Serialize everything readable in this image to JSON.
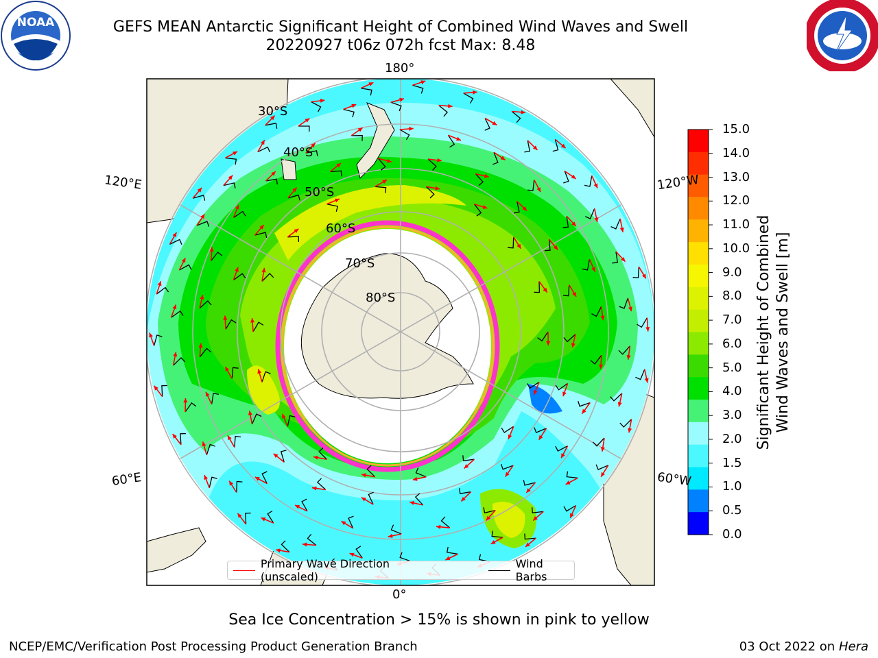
{
  "header": {
    "title_line1": "GEFS MEAN Antarctic Significant Height of Combined Wind Waves and Swell",
    "title_line2": "20220927 t06z 072h fcst   Max: 8.48"
  },
  "logos": {
    "left": {
      "name": "NOAA",
      "text": "NOAA"
    },
    "right": {
      "name": "National Weather Service"
    }
  },
  "map": {
    "projection": "south-polar-stereographic",
    "lon_labels": {
      "top": "180°",
      "bottom": "0°",
      "upper_left": "120°E",
      "lower_left": "60°E",
      "upper_right": "120°W",
      "lower_right": "60°W"
    },
    "lat_labels": [
      "30°S",
      "40°S",
      "50°S",
      "60°S",
      "70°S",
      "80°S"
    ],
    "colors": {
      "land": "#efecdc",
      "coast": "#000000",
      "grid": "#b0b0b0",
      "ice_edge": "#ff33cc",
      "ice_inner": "#ffb030",
      "wave_arrow": "#ff0000",
      "wind_barb": "#000000"
    }
  },
  "legend": {
    "primary_wave": "Primary Wave Direction (unscaled)",
    "wind_barbs": "Wind Barbs"
  },
  "colorbar": {
    "label_line1": "Significant Height of Combined",
    "label_line2": "Wind Waves and Swell [m]",
    "units": "m",
    "ticks": [
      "15.0",
      "14.0",
      "13.0",
      "12.0",
      "11.0",
      "10.0",
      "9.0",
      "8.0",
      "7.0",
      "6.0",
      "5.0",
      "4.0",
      "3.0",
      "2.0",
      "1.5",
      "1.0",
      "0.5",
      "0.0"
    ],
    "colors": [
      "#ff0000",
      "#ff2e00",
      "#ff5c00",
      "#ff8a00",
      "#ffb300",
      "#ffe000",
      "#f6f600",
      "#ddf200",
      "#c4ee00",
      "#8cea00",
      "#3cdb00",
      "#00e000",
      "#45f276",
      "#9bfcff",
      "#4cf8ff",
      "#00eaff",
      "#0081ff",
      "#0000ff"
    ]
  },
  "note": "Sea Ice Concentration > 15% is shown in pink to yellow",
  "footer": {
    "left": "NCEP/EMC/Verification Post Processing Product Generation Branch",
    "right_date": "03 Oct 2022 on ",
    "right_machine": "Hera"
  }
}
